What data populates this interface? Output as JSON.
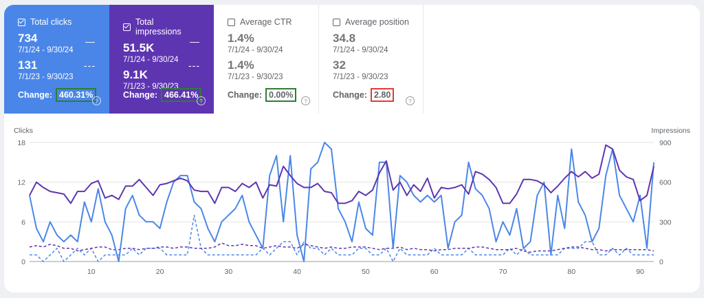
{
  "tiles": {
    "clicks": {
      "label": "Total clicks",
      "current": "734",
      "current_range": "7/1/24 - 9/30/24",
      "previous": "131",
      "previous_range": "7/1/23 - 9/30/23",
      "change_label": "Change:",
      "change": "460.31%",
      "checked": true
    },
    "impressions": {
      "label": "Total impressions",
      "current": "51.5K",
      "current_range": "7/1/24 - 9/30/24",
      "previous": "9.1K",
      "previous_range": "7/1/23 - 9/30/23",
      "change_label": "Change:",
      "change": "466.41%",
      "checked": true
    },
    "ctr": {
      "label": "Average CTR",
      "current": "1.4%",
      "current_range": "7/1/24 - 9/30/24",
      "previous": "1.4%",
      "previous_range": "7/1/23 - 9/30/23",
      "change_label": "Change:",
      "change": "0.00%",
      "checked": false
    },
    "position": {
      "label": "Average position",
      "current": "34.8",
      "current_range": "7/1/24 - 9/30/24",
      "previous": "32",
      "previous_range": "7/1/23 - 9/30/23",
      "change_label": "Change:",
      "change": "2.80",
      "checked": false
    }
  },
  "colors": {
    "clicks": "#4a86e8",
    "impressions": "#5e35b1",
    "green": "#2e7d32",
    "red": "#e53935"
  },
  "chart_data": {
    "type": "line",
    "xlabel": "",
    "ylabel_left": "Clicks",
    "ylabel_right": "Impressions",
    "x_ticks": [
      10,
      20,
      30,
      40,
      50,
      60,
      70,
      80,
      90
    ],
    "y_left_ticks": [
      0,
      6,
      12,
      18
    ],
    "y_right_ticks": [
      0,
      300,
      600,
      900
    ],
    "x_range": [
      1,
      92
    ],
    "y_left_range": [
      0,
      18
    ],
    "y_right_range": [
      0,
      900
    ],
    "legend": "none",
    "grid": true,
    "series": [
      {
        "axis": "left",
        "dashed": false,
        "color": "#4a86e8",
        "values": [
          10,
          5,
          3,
          6,
          4,
          3,
          4,
          3,
          9,
          6,
          11,
          6,
          4,
          0,
          8,
          10,
          7,
          6,
          6,
          5,
          9,
          12,
          13,
          13,
          9,
          8,
          5,
          3,
          6,
          7,
          8,
          10,
          6,
          4,
          2,
          13,
          16,
          6,
          16,
          4,
          0,
          14,
          15,
          18,
          17,
          8,
          6,
          3,
          9,
          5,
          4,
          15,
          15,
          2,
          13,
          12,
          10,
          9,
          10,
          9,
          10,
          2,
          6,
          7,
          15,
          11,
          10,
          8,
          3,
          6,
          4,
          8,
          2,
          3,
          10,
          12,
          1,
          10,
          5,
          17,
          9,
          7,
          3,
          5,
          13,
          17,
          10,
          8,
          6,
          10,
          2,
          15
        ]
      },
      {
        "axis": "right",
        "dashed": false,
        "color": "#5e35b1",
        "values": [
          500,
          600,
          560,
          530,
          520,
          510,
          440,
          530,
          530,
          590,
          610,
          480,
          500,
          470,
          570,
          570,
          620,
          560,
          500,
          580,
          590,
          610,
          630,
          610,
          540,
          530,
          530,
          440,
          560,
          560,
          530,
          590,
          560,
          600,
          480,
          580,
          570,
          720,
          650,
          590,
          560,
          560,
          590,
          530,
          520,
          440,
          440,
          460,
          530,
          500,
          540,
          670,
          760,
          540,
          600,
          500,
          580,
          530,
          630,
          480,
          560,
          550,
          560,
          580,
          510,
          680,
          660,
          620,
          560,
          440,
          440,
          510,
          620,
          620,
          610,
          580,
          520,
          570,
          630,
          680,
          640,
          680,
          630,
          660,
          880,
          850,
          690,
          640,
          620,
          460,
          500,
          720
        ]
      },
      {
        "axis": "left",
        "dashed": true,
        "color": "#4a86e8",
        "values": [
          1,
          1,
          0,
          1,
          2,
          0,
          1,
          2,
          1,
          2,
          0,
          1,
          1,
          1,
          1,
          2,
          1,
          2,
          2,
          2,
          1,
          1,
          1,
          1,
          7,
          2,
          1,
          1,
          1,
          1,
          1,
          1,
          1,
          1,
          2,
          1,
          2,
          3,
          3,
          1,
          3,
          2,
          2,
          1,
          2,
          1,
          1,
          1,
          2,
          2,
          1,
          1,
          2,
          0,
          2,
          1,
          1,
          1,
          1,
          2,
          1,
          1,
          1,
          1,
          2,
          1,
          1,
          1,
          1,
          1,
          2,
          1,
          2,
          1,
          1,
          1,
          1,
          1,
          2,
          2,
          2,
          3,
          3,
          1,
          1,
          2,
          1,
          2,
          1,
          1,
          1,
          1
        ]
      },
      {
        "axis": "right",
        "dashed": true,
        "color": "#5e35b1",
        "values": [
          110,
          120,
          110,
          130,
          120,
          100,
          100,
          80,
          90,
          100,
          110,
          110,
          90,
          90,
          100,
          100,
          90,
          100,
          100,
          110,
          110,
          100,
          110,
          110,
          100,
          100,
          100,
          110,
          140,
          120,
          120,
          130,
          120,
          120,
          100,
          110,
          120,
          110,
          110,
          100,
          130,
          120,
          110,
          100,
          110,
          100,
          100,
          110,
          110,
          110,
          100,
          90,
          100,
          100,
          110,
          90,
          100,
          90,
          90,
          80,
          90,
          90,
          100,
          100,
          100,
          110,
          110,
          100,
          90,
          90,
          90,
          100,
          80,
          70,
          80,
          80,
          80,
          90,
          100,
          110,
          110,
          100,
          90,
          90,
          80,
          90,
          90,
          90,
          90,
          90,
          90,
          80
        ]
      }
    ]
  }
}
